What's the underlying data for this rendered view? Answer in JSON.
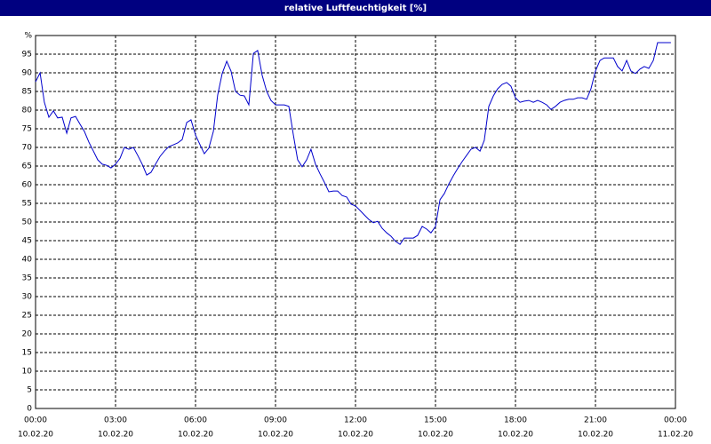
{
  "chart_data": {
    "type": "line",
    "title": "relative Luftfeuchtigkeit [%]",
    "x": [
      0,
      0.17,
      0.33,
      0.5,
      0.67,
      0.83,
      1,
      1.17,
      1.33,
      1.5,
      1.67,
      1.83,
      2,
      2.17,
      2.33,
      2.5,
      2.67,
      2.83,
      3,
      3.17,
      3.33,
      3.5,
      3.67,
      3.83,
      4,
      4.17,
      4.33,
      4.5,
      4.67,
      4.83,
      5,
      5.17,
      5.33,
      5.5,
      5.67,
      5.83,
      6,
      6.17,
      6.33,
      6.5,
      6.67,
      6.83,
      7,
      7.17,
      7.33,
      7.5,
      7.67,
      7.83,
      8,
      8.17,
      8.33,
      8.5,
      8.67,
      8.83,
      9,
      9.17,
      9.33,
      9.5,
      9.67,
      9.83,
      10,
      10.17,
      10.33,
      10.5,
      10.67,
      10.83,
      11,
      11.17,
      11.33,
      11.5,
      11.67,
      11.83,
      12,
      12.17,
      12.33,
      12.5,
      12.67,
      12.83,
      13,
      13.17,
      13.33,
      13.5,
      13.67,
      13.83,
      14,
      14.17,
      14.33,
      14.5,
      14.67,
      14.83,
      15,
      15.17,
      15.33,
      15.5,
      15.67,
      15.83,
      16,
      16.17,
      16.33,
      16.5,
      16.67,
      16.83,
      17,
      17.17,
      17.33,
      17.5,
      17.67,
      17.83,
      18,
      18.17,
      18.33,
      18.5,
      18.67,
      18.83,
      19,
      19.17,
      19.33,
      19.5,
      19.67,
      19.83,
      20,
      20.17,
      20.33,
      20.5,
      20.67,
      20.83,
      21,
      21.17,
      21.33,
      21.5,
      21.67,
      21.83,
      22,
      22.17,
      22.33,
      22.5,
      22.67,
      22.83,
      23,
      23.17,
      23.33,
      23.5,
      23.67,
      23.83
    ],
    "values": [
      87.6,
      90.0,
      82.1,
      78.1,
      79.8,
      77.9,
      78.1,
      73.8,
      77.9,
      78.3,
      76.2,
      74.3,
      71.4,
      69.0,
      66.7,
      65.5,
      65.2,
      64.5,
      65.5,
      67.1,
      70.0,
      69.5,
      70.0,
      67.9,
      65.5,
      62.6,
      63.3,
      65.5,
      67.6,
      69.0,
      70.2,
      70.7,
      71.2,
      72.1,
      76.7,
      77.4,
      73.3,
      70.7,
      68.3,
      69.8,
      74.3,
      84.0,
      89.8,
      93.1,
      90.5,
      85.0,
      84.0,
      83.8,
      81.4,
      95.2,
      96.0,
      89.3,
      85.0,
      82.6,
      81.4,
      81.4,
      81.4,
      81.0,
      73.3,
      66.7,
      64.8,
      66.7,
      69.5,
      65.5,
      62.9,
      60.7,
      58.1,
      58.3,
      58.3,
      57.1,
      56.7,
      54.8,
      54.3,
      53.1,
      51.9,
      50.7,
      49.8,
      50.2,
      48.3,
      47.1,
      46.2,
      44.8,
      44.0,
      45.7,
      45.7,
      45.7,
      46.4,
      48.8,
      48.1,
      47.1,
      48.8,
      56.0,
      57.6,
      60.2,
      62.4,
      64.3,
      66.2,
      67.9,
      69.5,
      70.0,
      69.0,
      71.9,
      81.0,
      83.8,
      85.7,
      86.9,
      87.4,
      86.4,
      83.3,
      82.1,
      82.4,
      82.6,
      82.1,
      82.6,
      82.1,
      81.4,
      80.2,
      81.0,
      82.1,
      82.6,
      82.9,
      82.9,
      83.3,
      83.3,
      82.9,
      85.7,
      90.5,
      93.3,
      94.0,
      94.0,
      94.0,
      91.7,
      90.5,
      93.3,
      90.5,
      89.8,
      91.0,
      91.7,
      91.2,
      93.3,
      98.1,
      98.1,
      98.1,
      98.1
    ],
    "color": "#0000cc",
    "xlim": [
      0,
      24
    ],
    "xticks": [
      {
        "value": 0,
        "label": "00:00",
        "date": "10.02.20"
      },
      {
        "value": 3,
        "label": "03:00",
        "date": "10.02.20"
      },
      {
        "value": 6,
        "label": "06:00",
        "date": "10.02.20"
      },
      {
        "value": 9,
        "label": "09:00",
        "date": "10.02.20"
      },
      {
        "value": 12,
        "label": "12:00",
        "date": "10.02.20"
      },
      {
        "value": 15,
        "label": "15:00",
        "date": "10.02.20"
      },
      {
        "value": 18,
        "label": "18:00",
        "date": "10.02.20"
      },
      {
        "value": 21,
        "label": "21:00",
        "date": "10.02.20"
      },
      {
        "value": 24,
        "label": "00:00",
        "date": "11.02.20"
      }
    ],
    "ylim": [
      0,
      100
    ],
    "yticks": [
      0,
      5,
      10,
      15,
      20,
      25,
      30,
      35,
      40,
      45,
      50,
      55,
      60,
      65,
      70,
      75,
      80,
      85,
      90,
      95,
      {
        "value": 100,
        "label": "%"
      }
    ],
    "grid": true
  }
}
